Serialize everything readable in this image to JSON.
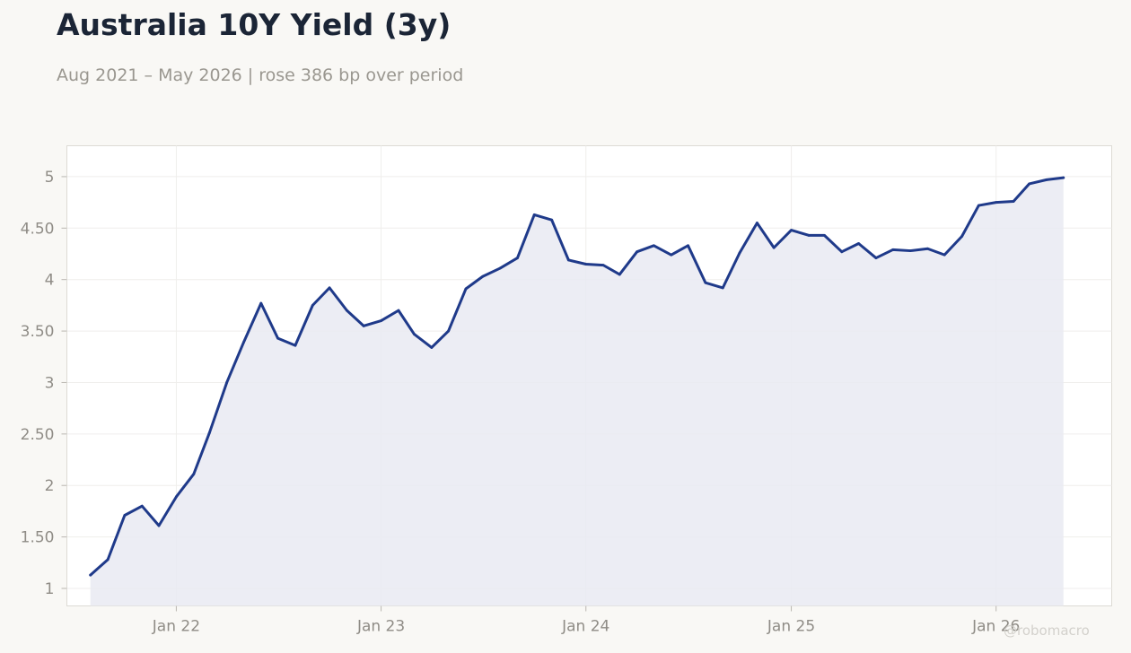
{
  "header": {
    "title": "Australia 10Y Yield (3y)",
    "subtitle": "Aug 2021 – May 2026 | rose 386 bp over period"
  },
  "watermark": "@robomacro",
  "colors": {
    "line": "#1f3a8a",
    "fill": "#e9eaf2",
    "grid": "#efeeec",
    "plot_bg": "#ffffff",
    "plot_border": "#dddbd5"
  },
  "chart_data": {
    "type": "area",
    "title": "Australia 10Y Yield (3y)",
    "xlabel": "",
    "ylabel": "",
    "ylim": [
      0.83,
      5.3
    ],
    "xlim": [
      "2021-06-20",
      "2026-07-26"
    ],
    "grid": true,
    "y_ticks": [
      {
        "value": 1,
        "label": "1"
      },
      {
        "value": 1.5,
        "label": "1.50"
      },
      {
        "value": 2,
        "label": "2"
      },
      {
        "value": 2.5,
        "label": "2.50"
      },
      {
        "value": 3,
        "label": "3"
      },
      {
        "value": 3.5,
        "label": "3.50"
      },
      {
        "value": 4,
        "label": "4"
      },
      {
        "value": 4.5,
        "label": "4.50"
      },
      {
        "value": 5,
        "label": "5"
      }
    ],
    "x_ticks": [
      {
        "date": "2022-01-01",
        "label": "Jan 22"
      },
      {
        "date": "2023-01-01",
        "label": "Jan 23"
      },
      {
        "date": "2024-01-01",
        "label": "Jan 24"
      },
      {
        "date": "2025-01-01",
        "label": "Jan 25"
      },
      {
        "date": "2026-01-01",
        "label": "Jan 26"
      }
    ],
    "series": [
      {
        "x": [
          "2021-08-01",
          "2021-09-01",
          "2021-10-01",
          "2021-11-01",
          "2021-12-01",
          "2022-01-01",
          "2022-02-01",
          "2022-03-01",
          "2022-04-01",
          "2022-05-01",
          "2022-06-01",
          "2022-07-01",
          "2022-08-01",
          "2022-09-01",
          "2022-10-01",
          "2022-11-01",
          "2022-12-01",
          "2023-01-01",
          "2023-02-01",
          "2023-03-01",
          "2023-04-01",
          "2023-05-01",
          "2023-06-01",
          "2023-07-01",
          "2023-08-01",
          "2023-09-01",
          "2023-10-01",
          "2023-11-01",
          "2023-12-01",
          "2024-01-01",
          "2024-02-01",
          "2024-03-01",
          "2024-04-01",
          "2024-05-01",
          "2024-06-01",
          "2024-07-01",
          "2024-08-01",
          "2024-09-01",
          "2024-10-01",
          "2024-11-01",
          "2024-12-01",
          "2025-01-01",
          "2025-02-01",
          "2025-03-01",
          "2025-04-01",
          "2025-05-01",
          "2025-06-01",
          "2025-07-01",
          "2025-08-01",
          "2025-09-01",
          "2025-10-01",
          "2025-11-01",
          "2025-12-01",
          "2026-01-01",
          "2026-02-01",
          "2026-03-01",
          "2026-04-01",
          "2026-05-01"
        ],
        "values": [
          1.13,
          1.28,
          1.71,
          1.8,
          1.61,
          1.89,
          2.11,
          2.51,
          3.0,
          3.39,
          3.77,
          3.43,
          3.36,
          3.75,
          3.92,
          3.7,
          3.55,
          3.6,
          3.7,
          3.47,
          3.34,
          3.5,
          3.91,
          4.03,
          4.11,
          4.21,
          4.63,
          4.58,
          4.19,
          4.15,
          4.14,
          4.05,
          4.27,
          4.33,
          4.24,
          4.33,
          3.97,
          3.92,
          4.26,
          4.55,
          4.31,
          4.48,
          4.43,
          4.43,
          4.27,
          4.35,
          4.21,
          4.29,
          4.28,
          4.3,
          4.24,
          4.42,
          4.72,
          4.75,
          4.76,
          4.93,
          4.97,
          4.99
        ]
      }
    ]
  }
}
